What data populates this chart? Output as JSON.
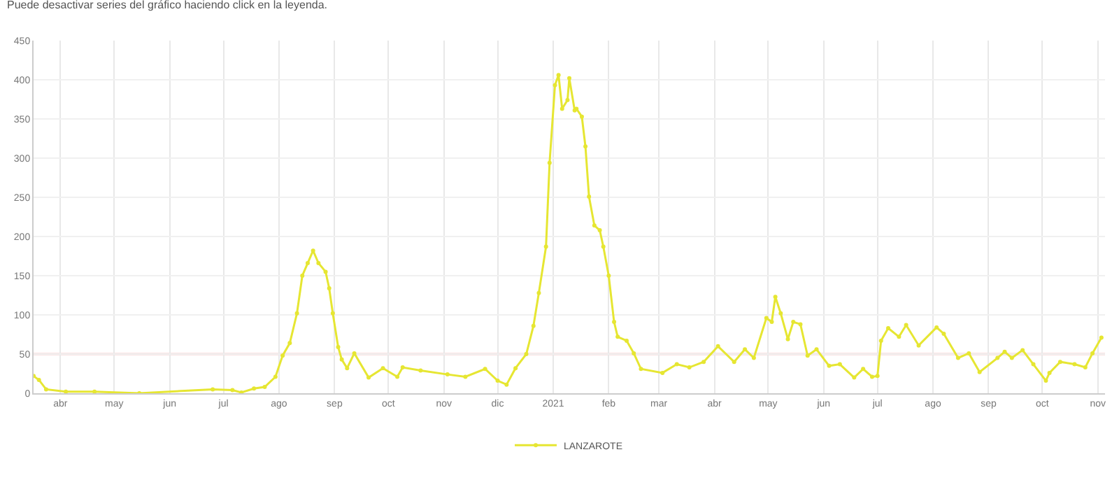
{
  "chart_data": {
    "type": "line",
    "annotations": [
      "Puede desactivar series del gráfico haciendo click en la leyenda."
    ],
    "x": [
      "2020-03-17",
      "2020-03-20",
      "2020-03-24",
      "2020-04-04",
      "2020-04-20",
      "2020-05-15",
      "2020-06-25",
      "2020-07-06",
      "2020-07-11",
      "2020-07-18",
      "2020-07-24",
      "2020-07-30",
      "2020-08-03",
      "2020-08-07",
      "2020-08-11",
      "2020-08-14",
      "2020-08-17",
      "2020-08-20",
      "2020-08-23",
      "2020-08-27",
      "2020-08-29",
      "2020-08-31",
      "2020-09-03",
      "2020-09-05",
      "2020-09-08",
      "2020-09-12",
      "2020-09-20",
      "2020-09-28",
      "2020-10-06",
      "2020-10-09",
      "2020-10-19",
      "2020-11-03",
      "2020-11-13",
      "2020-11-24",
      "2020-12-01",
      "2020-12-06",
      "2020-12-11",
      "2020-12-17",
      "2020-12-21",
      "2020-12-24",
      "2020-12-28",
      "2020-12-30",
      "2021-01-02",
      "2021-01-04",
      "2021-01-06",
      "2021-01-09",
      "2021-01-10",
      "2021-01-13",
      "2021-01-14",
      "2021-01-17",
      "2021-01-19",
      "2021-01-21",
      "2021-01-24",
      "2021-01-27",
      "2021-01-29",
      "2021-02-01",
      "2021-02-04",
      "2021-02-06",
      "2021-02-11",
      "2021-02-15",
      "2021-02-19",
      "2021-03-03",
      "2021-03-11",
      "2021-03-18",
      "2021-03-26",
      "2021-04-03",
      "2021-04-12",
      "2021-04-18",
      "2021-04-23",
      "2021-04-30",
      "2021-05-03",
      "2021-05-05",
      "2021-05-08",
      "2021-05-12",
      "2021-05-15",
      "2021-05-19",
      "2021-05-23",
      "2021-05-28",
      "2021-06-04",
      "2021-06-10",
      "2021-06-18",
      "2021-06-23",
      "2021-06-28",
      "2021-07-01",
      "2021-07-03",
      "2021-07-07",
      "2021-07-13",
      "2021-07-17",
      "2021-07-24",
      "2021-08-03",
      "2021-08-07",
      "2021-08-15",
      "2021-08-21",
      "2021-08-27",
      "2021-09-06",
      "2021-09-10",
      "2021-09-14",
      "2021-09-20",
      "2021-09-26",
      "2021-10-03",
      "2021-10-05",
      "2021-10-11",
      "2021-10-19",
      "2021-10-25",
      "2021-10-29",
      "2021-11-03"
    ],
    "series": [
      {
        "name": "LANZAROTE",
        "color": "#e6e632",
        "values": [
          22,
          17,
          5,
          2,
          2,
          0,
          5,
          4,
          1,
          6,
          8,
          21,
          48,
          64,
          102,
          150,
          166,
          182,
          166,
          155,
          134,
          102,
          59,
          43,
          32,
          51,
          20,
          32,
          21,
          33,
          29,
          24,
          21,
          31,
          16,
          11,
          32,
          50,
          86,
          128,
          187,
          294,
          393,
          406,
          363,
          374,
          402,
          361,
          363,
          353,
          315,
          251,
          214,
          208,
          187,
          150,
          91,
          72,
          67,
          51,
          31,
          26,
          37,
          33,
          40,
          60,
          40,
          56,
          45,
          96,
          91,
          123,
          102,
          69,
          91,
          88,
          48,
          56,
          35,
          37,
          20,
          31,
          21,
          22,
          67,
          83,
          72,
          87,
          61,
          84,
          76,
          45,
          51,
          27,
          45,
          53,
          45,
          55,
          37,
          16,
          26,
          40,
          37,
          33,
          51,
          71
        ]
      }
    ],
    "xlim": [
      "2020-03-17",
      "2021-11-05"
    ],
    "xticks": [
      {
        "value": "2020-04-01",
        "label": "abr"
      },
      {
        "value": "2020-05-01",
        "label": "may"
      },
      {
        "value": "2020-06-01",
        "label": "jun"
      },
      {
        "value": "2020-07-01",
        "label": "jul"
      },
      {
        "value": "2020-08-01",
        "label": "ago"
      },
      {
        "value": "2020-09-01",
        "label": "sep"
      },
      {
        "value": "2020-10-01",
        "label": "oct"
      },
      {
        "value": "2020-11-01",
        "label": "nov"
      },
      {
        "value": "2020-12-01",
        "label": "dic"
      },
      {
        "value": "2021-01-01",
        "label": "2021"
      },
      {
        "value": "2021-02-01",
        "label": "feb"
      },
      {
        "value": "2021-03-01",
        "label": "mar"
      },
      {
        "value": "2021-04-01",
        "label": "abr"
      },
      {
        "value": "2021-05-01",
        "label": "may"
      },
      {
        "value": "2021-06-01",
        "label": "jun"
      },
      {
        "value": "2021-07-01",
        "label": "jul"
      },
      {
        "value": "2021-08-01",
        "label": "ago"
      },
      {
        "value": "2021-09-01",
        "label": "sep"
      },
      {
        "value": "2021-10-01",
        "label": "oct"
      },
      {
        "value": "2021-11-01",
        "label": "nov"
      }
    ],
    "ylim": [
      0,
      450
    ],
    "yticks": [
      0,
      50,
      100,
      150,
      200,
      250,
      300,
      350,
      400,
      450
    ],
    "ref_lines": [
      {
        "axis": "y",
        "value": 50,
        "color": "#f5c6c6"
      }
    ],
    "grid": true,
    "legend": "bottom",
    "marker": "circle",
    "line_style": "solid"
  }
}
